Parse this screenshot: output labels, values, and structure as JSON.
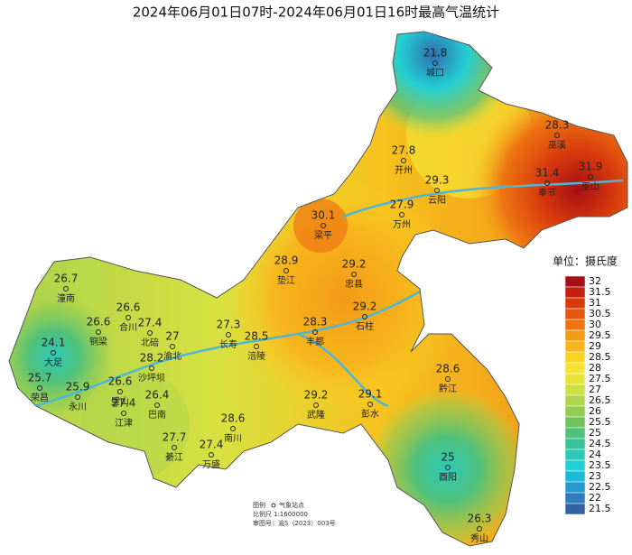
{
  "title": "2024年06月01日07时-2024年06月01日16时最高气温统计",
  "stations": [
    {
      "name": "城口",
      "value": 21.8
    },
    {
      "name": "巫溪",
      "value": 28.3
    },
    {
      "name": "开州",
      "value": 27.8
    },
    {
      "name": "云阳",
      "value": 29.3
    },
    {
      "name": "奉节",
      "value": 31.4
    },
    {
      "name": "巫山",
      "value": 31.9
    },
    {
      "name": "万州",
      "value": 27.9
    },
    {
      "name": "梁平",
      "value": 30.1
    },
    {
      "name": "垫江",
      "value": 28.9
    },
    {
      "name": "忠县",
      "value": 29.2
    },
    {
      "name": "石柱",
      "value": 29.2
    },
    {
      "name": "丰都",
      "value": 28.3
    },
    {
      "name": "涪陵",
      "value": 28.5
    },
    {
      "name": "长寿",
      "value": 27.3
    },
    {
      "name": "潼南",
      "value": 26.7
    },
    {
      "name": "合川",
      "value": 26.6
    },
    {
      "name": "铜梁",
      "value": 26.6
    },
    {
      "name": "北碚",
      "value": 27.4
    },
    {
      "name": "渝北",
      "value": 27
    },
    {
      "name": "大足",
      "value": 24.1
    },
    {
      "name": "沙坪坝",
      "value": 28.2
    },
    {
      "name": "璧山",
      "value": 26.6
    },
    {
      "name": "荣昌",
      "value": 25.7
    },
    {
      "name": "永川",
      "value": 25.9
    },
    {
      "name": "巴南",
      "value": 26.4
    },
    {
      "name": "江津",
      "value": 27.4
    },
    {
      "name": "南川",
      "value": 28.6
    },
    {
      "name": "綦江",
      "value": 27.7
    },
    {
      "name": "万盛",
      "value": 27.4
    },
    {
      "name": "武隆",
      "value": 29.2
    },
    {
      "name": "彭水",
      "value": 29.1
    },
    {
      "name": "黔江",
      "value": 28.6
    },
    {
      "name": "酉阳",
      "value": 25
    },
    {
      "name": "秀山",
      "value": 26.3
    }
  ],
  "legend": {
    "title": "单位：摄氏度",
    "levels": [
      {
        "value": 32,
        "color": "#a50f15"
      },
      {
        "value": 31.5,
        "color": "#c4200f"
      },
      {
        "value": 31,
        "color": "#d83a0c"
      },
      {
        "value": 30.5,
        "color": "#e5560e"
      },
      {
        "value": 30,
        "color": "#ee7512"
      },
      {
        "value": 29.5,
        "color": "#f39a17"
      },
      {
        "value": 29,
        "color": "#f7b71c"
      },
      {
        "value": 28.5,
        "color": "#fad325"
      },
      {
        "value": 28,
        "color": "#f5e233"
      },
      {
        "value": 27.5,
        "color": "#e6e43a"
      },
      {
        "value": 27,
        "color": "#cde043"
      },
      {
        "value": 26.5,
        "color": "#b1d64c"
      },
      {
        "value": 26,
        "color": "#92cc52"
      },
      {
        "value": 25.5,
        "color": "#6fc35d"
      },
      {
        "value": 25,
        "color": "#4fc17b"
      },
      {
        "value": 24.5,
        "color": "#38c49a"
      },
      {
        "value": 24,
        "color": "#2ec8b8"
      },
      {
        "value": 23.5,
        "color": "#22cfd4"
      },
      {
        "value": 23,
        "color": "#1cb8d8"
      },
      {
        "value": 22.5,
        "color": "#2499cf"
      },
      {
        "value": 22,
        "color": "#2e7bbd"
      },
      {
        "value": 21.5,
        "color": "#3460a4"
      }
    ]
  },
  "footer": {
    "legend_label": "图例",
    "station_label": "气象站点",
    "scale_label": "比例尺",
    "scale": "1:1600000",
    "approval": "审图号：渝S（2023）003号"
  }
}
